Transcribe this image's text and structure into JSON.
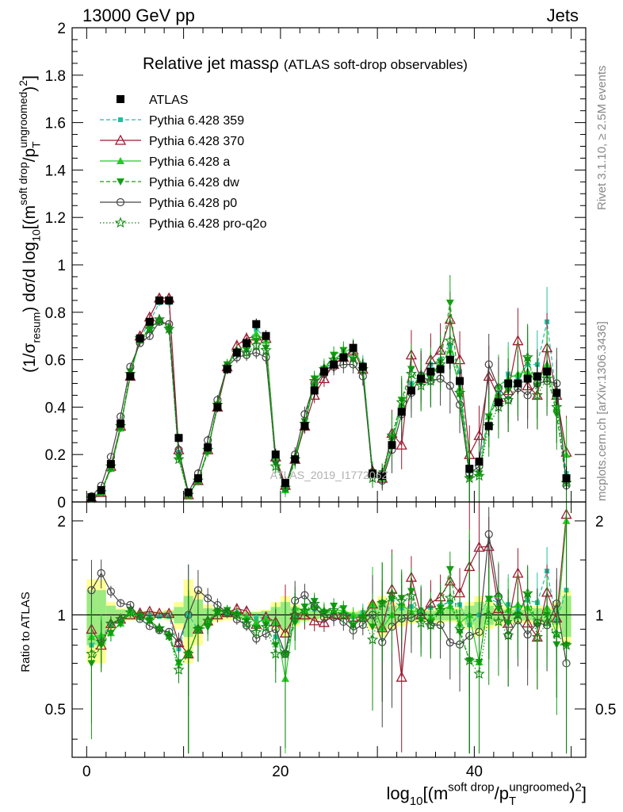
{
  "header": {
    "left": "13000 GeV pp",
    "right": "Jets"
  },
  "side_labels": {
    "rivet": "Rivet 3.1.10, ≥ 2.5M events",
    "mcplots": "mcplots.cern.ch [arXiv:1306.3436]"
  },
  "watermark": "ATLAS_2019_I1772062",
  "chart_data": [
    {
      "type": "line",
      "panel": "main",
      "title": "Relative jet massρ",
      "subtitle": "(ATLAS soft-drop observables)",
      "ylabel": "(1/σresum) dσ/d log10[(msoft drop/pTungroomed)2]",
      "xlim": [
        -1.5,
        51.5
      ],
      "ylim": [
        0,
        2
      ],
      "y_ticks": [
        "0",
        "0.2",
        "0.4",
        "0.6",
        "0.8",
        "1",
        "1.2",
        "1.4",
        "1.6",
        "1.8",
        "2"
      ],
      "legend_position": "top-left",
      "x": [
        0.5,
        1.5,
        2.5,
        3.5,
        4.5,
        5.5,
        6.5,
        7.5,
        8.5,
        9.5,
        10.5,
        11.5,
        12.5,
        13.5,
        14.5,
        15.5,
        16.5,
        17.5,
        18.5,
        19.5,
        20.5,
        21.5,
        22.5,
        23.5,
        24.5,
        25.5,
        26.5,
        27.5,
        28.5,
        29.5,
        30.5,
        31.5,
        32.5,
        33.5,
        34.5,
        35.5,
        36.5,
        37.5,
        38.5,
        39.5,
        40.5,
        41.5,
        42.5,
        43.5,
        44.5,
        45.5,
        46.5,
        47.5,
        48.5,
        49.5
      ],
      "series": [
        {
          "name": "ATLAS",
          "color": "#000000",
          "marker": "square",
          "line": "none",
          "values": [
            0.02,
            0.05,
            0.16,
            0.33,
            0.53,
            0.69,
            0.76,
            0.85,
            0.85,
            0.27,
            0.04,
            0.1,
            0.23,
            0.4,
            0.56,
            0.63,
            0.67,
            0.75,
            0.7,
            0.2,
            0.08,
            0.18,
            0.32,
            0.47,
            0.55,
            0.58,
            0.61,
            0.65,
            0.57,
            0.12,
            0.11,
            0.24,
            0.38,
            0.47,
            0.52,
            0.55,
            0.56,
            0.6,
            0.51,
            0.14,
            0.17,
            0.32,
            0.42,
            0.5,
            0.5,
            0.52,
            0.53,
            0.55,
            0.46,
            0.1
          ]
        },
        {
          "name": "Pythia 6.428 359",
          "color": "#1fbf9f",
          "marker": "square-small",
          "line": "dashed",
          "values": [
            0.016,
            0.042,
            0.15,
            0.32,
            0.54,
            0.69,
            0.76,
            0.84,
            0.84,
            0.21,
            0.04,
            0.09,
            0.22,
            0.41,
            0.57,
            0.64,
            0.66,
            0.73,
            0.69,
            0.17,
            0.06,
            0.18,
            0.33,
            0.49,
            0.56,
            0.59,
            0.62,
            0.64,
            0.58,
            0.13,
            0.1,
            0.27,
            0.4,
            0.5,
            0.54,
            0.58,
            0.6,
            0.66,
            0.55,
            0.13,
            0.17,
            0.36,
            0.46,
            0.54,
            0.52,
            0.58,
            0.58,
            0.76,
            0.44,
            0.12
          ]
        },
        {
          "name": "Pythia 6.428 370",
          "color": "#9b1b30",
          "marker": "triangle-open",
          "line": "solid",
          "values": [
            0.018,
            0.04,
            0.15,
            0.32,
            0.53,
            0.7,
            0.78,
            0.86,
            0.86,
            0.22,
            0.03,
            0.09,
            0.22,
            0.4,
            0.57,
            0.66,
            0.69,
            0.7,
            0.69,
            0.19,
            0.07,
            0.18,
            0.32,
            0.45,
            0.52,
            0.58,
            0.61,
            0.64,
            0.56,
            0.13,
            0.1,
            0.29,
            0.24,
            0.62,
            0.52,
            0.6,
            0.64,
            0.77,
            0.6,
            0.2,
            0.28,
            0.53,
            0.44,
            0.47,
            0.68,
            0.49,
            0.45,
            0.65,
            0.45,
            0.21
          ]
        },
        {
          "name": "Pythia 6.428 a",
          "color": "#22cc22",
          "marker": "triangle",
          "line": "solid",
          "values": [
            0.017,
            0.043,
            0.14,
            0.31,
            0.54,
            0.68,
            0.73,
            0.77,
            0.74,
            0.19,
            0.03,
            0.09,
            0.22,
            0.41,
            0.58,
            0.64,
            0.66,
            0.71,
            0.68,
            0.19,
            0.05,
            0.19,
            0.33,
            0.5,
            0.57,
            0.6,
            0.63,
            0.65,
            0.57,
            0.13,
            0.1,
            0.24,
            0.41,
            0.48,
            0.54,
            0.54,
            0.58,
            0.64,
            0.48,
            0.14,
            0.12,
            0.36,
            0.49,
            0.52,
            0.54,
            0.55,
            0.5,
            0.58,
            0.4,
            0.2
          ]
        },
        {
          "name": "Pythia 6.428 dw",
          "color": "#11a011",
          "marker": "triangle-down",
          "line": "dashed",
          "values": [
            0.014,
            0.04,
            0.14,
            0.31,
            0.55,
            0.68,
            0.73,
            0.76,
            0.72,
            0.19,
            0.03,
            0.09,
            0.21,
            0.41,
            0.58,
            0.63,
            0.64,
            0.68,
            0.65,
            0.16,
            0.06,
            0.17,
            0.34,
            0.52,
            0.56,
            0.62,
            0.64,
            0.6,
            0.56,
            0.11,
            0.12,
            0.27,
            0.43,
            0.56,
            0.5,
            0.52,
            0.59,
            0.84,
            0.45,
            0.1,
            0.12,
            0.36,
            0.44,
            0.47,
            0.5,
            0.6,
            0.49,
            0.55,
            0.37,
            0.08
          ]
        },
        {
          "name": "Pythia 6.428 p0",
          "color": "#444444",
          "marker": "circle-open",
          "line": "solid",
          "values": [
            0.024,
            0.068,
            0.19,
            0.36,
            0.57,
            0.67,
            0.7,
            0.76,
            0.75,
            0.22,
            0.04,
            0.12,
            0.26,
            0.43,
            0.57,
            0.61,
            0.62,
            0.63,
            0.61,
            0.18,
            0.06,
            0.2,
            0.37,
            0.5,
            0.54,
            0.57,
            0.58,
            0.58,
            0.53,
            0.12,
            0.09,
            0.22,
            0.37,
            0.46,
            0.53,
            0.51,
            0.52,
            0.49,
            0.41,
            0.12,
            0.15,
            0.58,
            0.48,
            0.43,
            0.48,
            0.45,
            0.5,
            0.51,
            0.5,
            0.07
          ]
        },
        {
          "name": "Pythia 6.428 pro-q2o",
          "color": "#118811",
          "marker": "star",
          "line": "dotted",
          "values": [
            0.015,
            0.041,
            0.15,
            0.32,
            0.54,
            0.69,
            0.73,
            0.77,
            0.73,
            0.18,
            0.03,
            0.09,
            0.22,
            0.41,
            0.57,
            0.63,
            0.63,
            0.66,
            0.64,
            0.15,
            0.06,
            0.18,
            0.33,
            0.51,
            0.56,
            0.6,
            0.61,
            0.61,
            0.56,
            0.1,
            0.12,
            0.28,
            0.42,
            0.54,
            0.49,
            0.51,
            0.58,
            0.68,
            0.46,
            0.1,
            0.11,
            0.32,
            0.4,
            0.43,
            0.5,
            0.61,
            0.45,
            0.52,
            0.4,
            0.08
          ]
        }
      ]
    },
    {
      "type": "line",
      "panel": "ratio",
      "ylabel": "Ratio to ATLAS",
      "xlabel": "log10[(msoft drop/pTungroomed)2]",
      "ylim": [
        0.35,
        2.3
      ],
      "y_scale": "log",
      "y_ticks": [
        "0.5",
        "1",
        "2"
      ],
      "x_ticks": [
        "0",
        "20",
        "40"
      ],
      "reference_line": 1,
      "band_yellow_half_width": [
        0.3,
        0.3,
        0.1,
        0.05,
        0.04,
        0.03,
        0.03,
        0.03,
        0.04,
        0.1,
        0.3,
        0.2,
        0.08,
        0.05,
        0.04,
        0.03,
        0.03,
        0.03,
        0.04,
        0.1,
        0.15,
        0.08,
        0.05,
        0.04,
        0.03,
        0.03,
        0.03,
        0.03,
        0.04,
        0.1,
        0.15,
        0.1,
        0.08,
        0.06,
        0.05,
        0.05,
        0.06,
        0.05,
        0.06,
        0.1,
        0.15,
        0.1,
        0.08,
        0.06,
        0.06,
        0.06,
        0.07,
        0.06,
        0.1,
        0.2
      ],
      "band_green_half_width": [
        0.2,
        0.2,
        0.07,
        0.04,
        0.03,
        0.02,
        0.02,
        0.02,
        0.03,
        0.06,
        0.15,
        0.12,
        0.05,
        0.03,
        0.02,
        0.02,
        0.02,
        0.02,
        0.03,
        0.06,
        0.1,
        0.06,
        0.04,
        0.03,
        0.02,
        0.02,
        0.02,
        0.02,
        0.03,
        0.06,
        0.1,
        0.07,
        0.05,
        0.04,
        0.03,
        0.03,
        0.04,
        0.04,
        0.04,
        0.07,
        0.1,
        0.07,
        0.05,
        0.04,
        0.04,
        0.04,
        0.05,
        0.04,
        0.07,
        0.15
      ]
    }
  ]
}
